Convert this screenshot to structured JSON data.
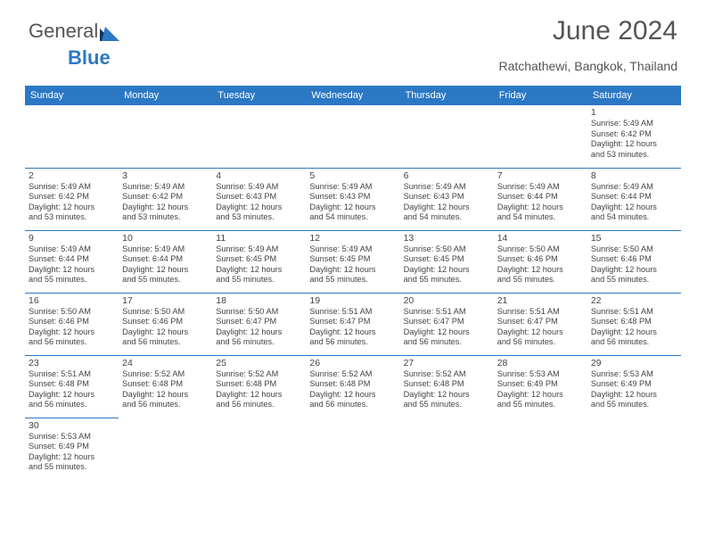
{
  "logo": {
    "text1": "General",
    "text2": "Blue"
  },
  "title": "June 2024",
  "subtitle": "Ratchathewi, Bangkok, Thailand",
  "colors": {
    "header_bg": "#2b78c5",
    "header_fg": "#ffffff",
    "border": "#2b78c5",
    "text": "#444444",
    "title_color": "#555555"
  },
  "day_headers": [
    "Sunday",
    "Monday",
    "Tuesday",
    "Wednesday",
    "Thursday",
    "Friday",
    "Saturday"
  ],
  "weeks": [
    [
      null,
      null,
      null,
      null,
      null,
      null,
      {
        "n": "1",
        "sunrise": "Sunrise: 5:49 AM",
        "sunset": "Sunset: 6:42 PM",
        "day1": "Daylight: 12 hours",
        "day2": "and 53 minutes."
      }
    ],
    [
      {
        "n": "2",
        "sunrise": "Sunrise: 5:49 AM",
        "sunset": "Sunset: 6:42 PM",
        "day1": "Daylight: 12 hours",
        "day2": "and 53 minutes."
      },
      {
        "n": "3",
        "sunrise": "Sunrise: 5:49 AM",
        "sunset": "Sunset: 6:42 PM",
        "day1": "Daylight: 12 hours",
        "day2": "and 53 minutes."
      },
      {
        "n": "4",
        "sunrise": "Sunrise: 5:49 AM",
        "sunset": "Sunset: 6:43 PM",
        "day1": "Daylight: 12 hours",
        "day2": "and 53 minutes."
      },
      {
        "n": "5",
        "sunrise": "Sunrise: 5:49 AM",
        "sunset": "Sunset: 6:43 PM",
        "day1": "Daylight: 12 hours",
        "day2": "and 54 minutes."
      },
      {
        "n": "6",
        "sunrise": "Sunrise: 5:49 AM",
        "sunset": "Sunset: 6:43 PM",
        "day1": "Daylight: 12 hours",
        "day2": "and 54 minutes."
      },
      {
        "n": "7",
        "sunrise": "Sunrise: 5:49 AM",
        "sunset": "Sunset: 6:44 PM",
        "day1": "Daylight: 12 hours",
        "day2": "and 54 minutes."
      },
      {
        "n": "8",
        "sunrise": "Sunrise: 5:49 AM",
        "sunset": "Sunset: 6:44 PM",
        "day1": "Daylight: 12 hours",
        "day2": "and 54 minutes."
      }
    ],
    [
      {
        "n": "9",
        "sunrise": "Sunrise: 5:49 AM",
        "sunset": "Sunset: 6:44 PM",
        "day1": "Daylight: 12 hours",
        "day2": "and 55 minutes."
      },
      {
        "n": "10",
        "sunrise": "Sunrise: 5:49 AM",
        "sunset": "Sunset: 6:44 PM",
        "day1": "Daylight: 12 hours",
        "day2": "and 55 minutes."
      },
      {
        "n": "11",
        "sunrise": "Sunrise: 5:49 AM",
        "sunset": "Sunset: 6:45 PM",
        "day1": "Daylight: 12 hours",
        "day2": "and 55 minutes."
      },
      {
        "n": "12",
        "sunrise": "Sunrise: 5:49 AM",
        "sunset": "Sunset: 6:45 PM",
        "day1": "Daylight: 12 hours",
        "day2": "and 55 minutes."
      },
      {
        "n": "13",
        "sunrise": "Sunrise: 5:50 AM",
        "sunset": "Sunset: 6:45 PM",
        "day1": "Daylight: 12 hours",
        "day2": "and 55 minutes."
      },
      {
        "n": "14",
        "sunrise": "Sunrise: 5:50 AM",
        "sunset": "Sunset: 6:46 PM",
        "day1": "Daylight: 12 hours",
        "day2": "and 55 minutes."
      },
      {
        "n": "15",
        "sunrise": "Sunrise: 5:50 AM",
        "sunset": "Sunset: 6:46 PM",
        "day1": "Daylight: 12 hours",
        "day2": "and 55 minutes."
      }
    ],
    [
      {
        "n": "16",
        "sunrise": "Sunrise: 5:50 AM",
        "sunset": "Sunset: 6:46 PM",
        "day1": "Daylight: 12 hours",
        "day2": "and 56 minutes."
      },
      {
        "n": "17",
        "sunrise": "Sunrise: 5:50 AM",
        "sunset": "Sunset: 6:46 PM",
        "day1": "Daylight: 12 hours",
        "day2": "and 56 minutes."
      },
      {
        "n": "18",
        "sunrise": "Sunrise: 5:50 AM",
        "sunset": "Sunset: 6:47 PM",
        "day1": "Daylight: 12 hours",
        "day2": "and 56 minutes."
      },
      {
        "n": "19",
        "sunrise": "Sunrise: 5:51 AM",
        "sunset": "Sunset: 6:47 PM",
        "day1": "Daylight: 12 hours",
        "day2": "and 56 minutes."
      },
      {
        "n": "20",
        "sunrise": "Sunrise: 5:51 AM",
        "sunset": "Sunset: 6:47 PM",
        "day1": "Daylight: 12 hours",
        "day2": "and 56 minutes."
      },
      {
        "n": "21",
        "sunrise": "Sunrise: 5:51 AM",
        "sunset": "Sunset: 6:47 PM",
        "day1": "Daylight: 12 hours",
        "day2": "and 56 minutes."
      },
      {
        "n": "22",
        "sunrise": "Sunrise: 5:51 AM",
        "sunset": "Sunset: 6:48 PM",
        "day1": "Daylight: 12 hours",
        "day2": "and 56 minutes."
      }
    ],
    [
      {
        "n": "23",
        "sunrise": "Sunrise: 5:51 AM",
        "sunset": "Sunset: 6:48 PM",
        "day1": "Daylight: 12 hours",
        "day2": "and 56 minutes."
      },
      {
        "n": "24",
        "sunrise": "Sunrise: 5:52 AM",
        "sunset": "Sunset: 6:48 PM",
        "day1": "Daylight: 12 hours",
        "day2": "and 56 minutes."
      },
      {
        "n": "25",
        "sunrise": "Sunrise: 5:52 AM",
        "sunset": "Sunset: 6:48 PM",
        "day1": "Daylight: 12 hours",
        "day2": "and 56 minutes."
      },
      {
        "n": "26",
        "sunrise": "Sunrise: 5:52 AM",
        "sunset": "Sunset: 6:48 PM",
        "day1": "Daylight: 12 hours",
        "day2": "and 56 minutes."
      },
      {
        "n": "27",
        "sunrise": "Sunrise: 5:52 AM",
        "sunset": "Sunset: 6:48 PM",
        "day1": "Daylight: 12 hours",
        "day2": "and 55 minutes."
      },
      {
        "n": "28",
        "sunrise": "Sunrise: 5:53 AM",
        "sunset": "Sunset: 6:49 PM",
        "day1": "Daylight: 12 hours",
        "day2": "and 55 minutes."
      },
      {
        "n": "29",
        "sunrise": "Sunrise: 5:53 AM",
        "sunset": "Sunset: 6:49 PM",
        "day1": "Daylight: 12 hours",
        "day2": "and 55 minutes."
      }
    ],
    [
      {
        "n": "30",
        "sunrise": "Sunrise: 5:53 AM",
        "sunset": "Sunset: 6:49 PM",
        "day1": "Daylight: 12 hours",
        "day2": "and 55 minutes."
      },
      null,
      null,
      null,
      null,
      null,
      null
    ]
  ]
}
